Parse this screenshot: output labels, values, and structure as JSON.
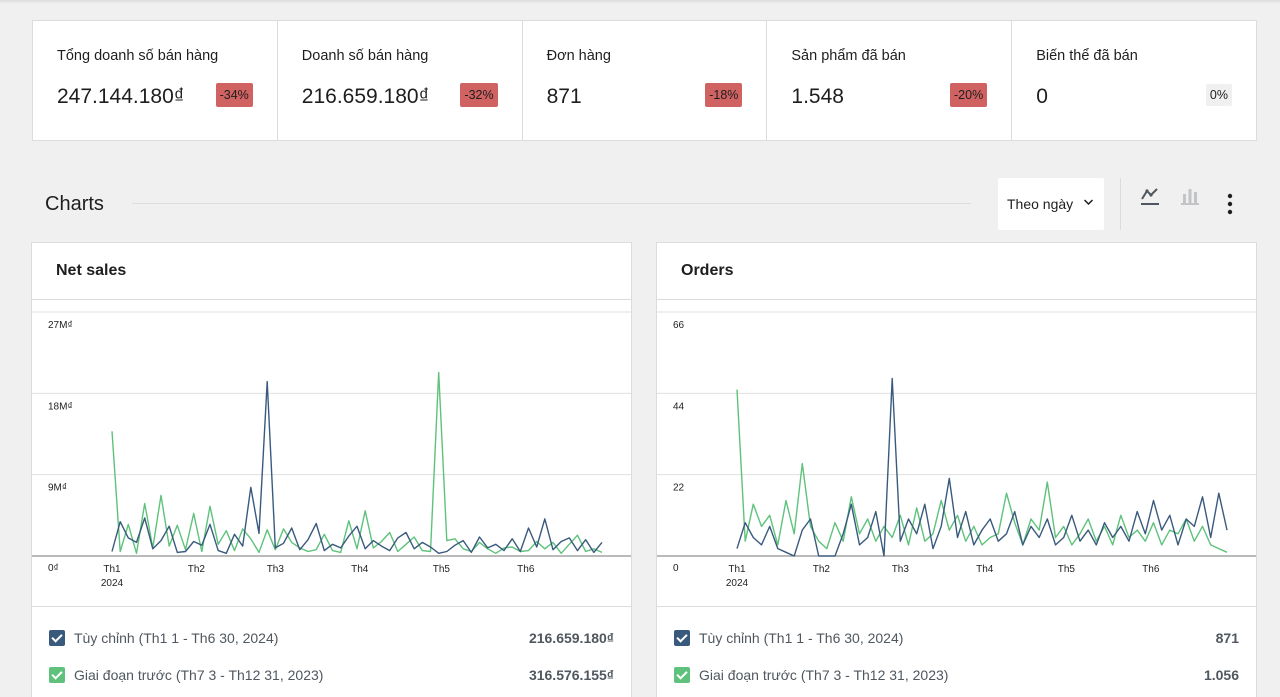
{
  "summary": [
    {
      "label": "Tổng doanh số bán hàng",
      "value": "247.144.180₫",
      "delta": "-34%",
      "trend": "down"
    },
    {
      "label": "Doanh số bán hàng",
      "value": "216.659.180₫",
      "delta": "-32%",
      "trend": "down"
    },
    {
      "label": "Đơn hàng",
      "value": "871",
      "delta": "-18%",
      "trend": "down"
    },
    {
      "label": "Sản phẩm đã bán",
      "value": "1.548",
      "delta": "-20%",
      "trend": "down"
    },
    {
      "label": "Biến thể đã bán",
      "value": "0",
      "delta": "0%",
      "trend": "neutral"
    }
  ],
  "charts_section": {
    "title": "Charts",
    "interval": "Theo ngày",
    "icons": {
      "line": "line-chart-icon",
      "bar": "bar-chart-icon",
      "more": "more-vertical-icon"
    }
  },
  "colors": {
    "current": "#3a5a7d",
    "previous": "#5ec27c",
    "decline_badge": "#d16262"
  },
  "cards": [
    {
      "title": "Net sales",
      "legend": [
        {
          "name": "Tùy chỉnh (Th1 1 - Th6 30, 2024)",
          "total": "216.659.180₫"
        },
        {
          "name": "Giai đoạn trước (Th7 3 - Th12 31, 2023)",
          "total": "316.576.155₫"
        }
      ]
    },
    {
      "title": "Orders",
      "legend": [
        {
          "name": "Tùy chỉnh (Th1 1 - Th6 30, 2024)",
          "total": "871"
        },
        {
          "name": "Giai đoạn trước (Th7 3 - Th12 31, 2023)",
          "total": "1.056"
        }
      ]
    }
  ],
  "chart_data": [
    {
      "type": "line",
      "title": "Net sales",
      "y_tick_labels": [
        "0₫",
        "9M₫",
        "18M₫",
        "27M₫"
      ],
      "y_ticks": [
        0,
        9,
        18,
        27
      ],
      "ylim": [
        0,
        27
      ],
      "x_tick_labels": [
        "Th1",
        "Th2",
        "Th3",
        "Th4",
        "Th5",
        "Th6"
      ],
      "x_year_label": "2024",
      "grid": true,
      "x": [
        "2024-01-01",
        "2024-01-04",
        "2024-01-07",
        "2024-01-10",
        "2024-01-13",
        "2024-01-16",
        "2024-01-19",
        "2024-01-22",
        "2024-01-25",
        "2024-01-28",
        "2024-01-31",
        "2024-02-03",
        "2024-02-06",
        "2024-02-09",
        "2024-02-12",
        "2024-02-15",
        "2024-02-18",
        "2024-02-21",
        "2024-02-24",
        "2024-02-27",
        "2024-03-01",
        "2024-03-04",
        "2024-03-07",
        "2024-03-10",
        "2024-03-13",
        "2024-03-16",
        "2024-03-19",
        "2024-03-22",
        "2024-03-25",
        "2024-03-28",
        "2024-03-31",
        "2024-04-03",
        "2024-04-06",
        "2024-04-09",
        "2024-04-12",
        "2024-04-15",
        "2024-04-18",
        "2024-04-21",
        "2024-04-24",
        "2024-04-27",
        "2024-04-30",
        "2024-05-03",
        "2024-05-06",
        "2024-05-09",
        "2024-05-12",
        "2024-05-15",
        "2024-05-18",
        "2024-05-21",
        "2024-05-24",
        "2024-05-27",
        "2024-05-30",
        "2024-06-02",
        "2024-06-05",
        "2024-06-08",
        "2024-06-11",
        "2024-06-14",
        "2024-06-17",
        "2024-06-20",
        "2024-06-23",
        "2024-06-26",
        "2024-06-29"
      ],
      "series": [
        {
          "name": "Tùy chỉnh (Th1 1 - Th6 30, 2024)",
          "values": [
            0.5,
            3.8,
            2.0,
            1.5,
            4.2,
            0.8,
            1.7,
            3.3,
            0.4,
            0.5,
            1.6,
            1.2,
            3.5,
            0.6,
            0.3,
            2.4,
            1.1,
            7.6,
            2.5,
            19.3,
            0.9,
            1.4,
            3.1,
            0.7,
            1.8,
            3.6,
            0.6,
            1.3,
            0.9,
            2.2,
            3.3,
            0.8,
            1.7,
            1.1,
            0.6,
            2.0,
            2.6,
            0.8,
            1.5,
            1.0,
            0.3,
            0.5,
            1.2,
            1.7,
            0.4,
            2.1,
            0.9,
            1.3,
            0.6,
            1.9,
            0.5,
            3.1,
            1.0,
            4.1,
            0.7,
            1.6,
            2.0,
            0.6,
            1.8,
            0.4,
            1.5
          ]
        },
        {
          "name": "Giai đoạn trước (Th7 3 - Th12 31, 2023)",
          "values": [
            13.8,
            0.5,
            3.5,
            0.3,
            5.8,
            0.9,
            6.7,
            1.1,
            3.4,
            0.7,
            4.7,
            0.5,
            5.5,
            1.3,
            2.8,
            0.6,
            3.0,
            1.9,
            0.4,
            2.9,
            0.7,
            3.0,
            1.5,
            0.9,
            0.5,
            0.7,
            2.4,
            0.6,
            0.4,
            3.9,
            0.8,
            5.0,
            0.9,
            1.6,
            2.6,
            0.5,
            1.3,
            2.1,
            0.6,
            0.5,
            20.3,
            1.7,
            1.9,
            0.8,
            0.5,
            1.5,
            0.8,
            0.3,
            0.9,
            1.0,
            0.5,
            0.6,
            1.6,
            0.8,
            1.5,
            0.3,
            1.3,
            2.3,
            0.5,
            0.8,
            0.4
          ]
        }
      ]
    },
    {
      "type": "line",
      "title": "Orders",
      "y_tick_labels": [
        "0",
        "22",
        "44",
        "66"
      ],
      "y_ticks": [
        0,
        22,
        44,
        66
      ],
      "ylim": [
        0,
        66
      ],
      "x_tick_labels": [
        "Th1",
        "Th2",
        "Th3",
        "Th4",
        "Th5",
        "Th6"
      ],
      "x_year_label": "2024",
      "grid": true,
      "x": [
        "2024-01-01",
        "2024-01-04",
        "2024-01-07",
        "2024-01-10",
        "2024-01-13",
        "2024-01-16",
        "2024-01-19",
        "2024-01-22",
        "2024-01-25",
        "2024-01-28",
        "2024-01-31",
        "2024-02-03",
        "2024-02-06",
        "2024-02-09",
        "2024-02-12",
        "2024-02-15",
        "2024-02-18",
        "2024-02-21",
        "2024-02-24",
        "2024-02-27",
        "2024-03-01",
        "2024-03-04",
        "2024-03-07",
        "2024-03-10",
        "2024-03-13",
        "2024-03-16",
        "2024-03-19",
        "2024-03-22",
        "2024-03-25",
        "2024-03-28",
        "2024-03-31",
        "2024-04-03",
        "2024-04-06",
        "2024-04-09",
        "2024-04-12",
        "2024-04-15",
        "2024-04-18",
        "2024-04-21",
        "2024-04-24",
        "2024-04-27",
        "2024-04-30",
        "2024-05-03",
        "2024-05-06",
        "2024-05-09",
        "2024-05-12",
        "2024-05-15",
        "2024-05-18",
        "2024-05-21",
        "2024-05-24",
        "2024-05-27",
        "2024-05-30",
        "2024-06-02",
        "2024-06-05",
        "2024-06-08",
        "2024-06-11",
        "2024-06-14",
        "2024-06-17",
        "2024-06-20",
        "2024-06-23",
        "2024-06-26",
        "2024-06-29"
      ],
      "series": [
        {
          "name": "Tùy chỉnh (Th1 1 - Th6 30, 2024)",
          "values": [
            2,
            9,
            5,
            3,
            8,
            2,
            1,
            0,
            7,
            10,
            0,
            0,
            0,
            6,
            14,
            3,
            5,
            12,
            0,
            48,
            4,
            10,
            6,
            14,
            2,
            8,
            21,
            5,
            12,
            3,
            7,
            10,
            4,
            6,
            12,
            3,
            8,
            5,
            10,
            3,
            5,
            11,
            4,
            7,
            3,
            9,
            5,
            8,
            4,
            12,
            6,
            15,
            7,
            11,
            3,
            10,
            8,
            16,
            5,
            17,
            7
          ]
        },
        {
          "name": "Giai đoạn trước (Th7 3 - Th12 31, 2023)",
          "values": [
            45,
            4,
            14,
            8,
            11,
            3,
            15,
            6,
            25,
            8,
            4,
            2,
            9,
            4,
            16,
            6,
            10,
            4,
            8,
            5,
            11,
            3,
            13,
            4,
            6,
            15,
            7,
            11,
            4,
            8,
            3,
            5,
            6,
            17,
            9,
            3,
            10,
            7,
            20,
            5,
            8,
            3,
            6,
            10,
            4,
            8,
            3,
            11,
            5,
            7,
            4,
            9,
            3,
            7,
            6,
            10,
            4,
            8,
            3,
            2,
            1
          ]
        }
      ]
    }
  ]
}
